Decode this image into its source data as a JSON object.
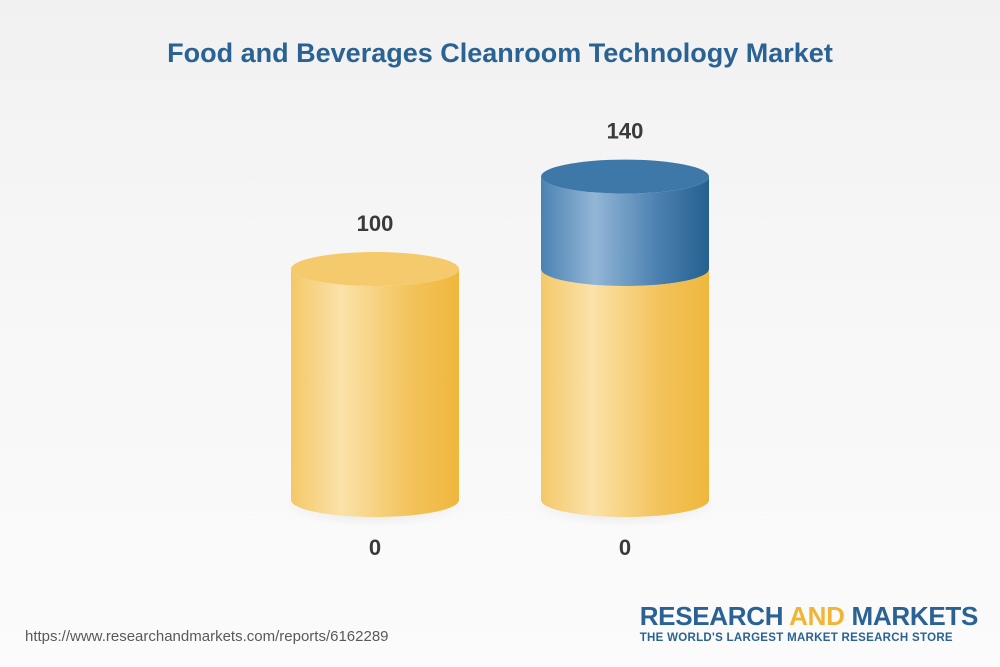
{
  "page": {
    "source_url": "https://www.researchandmarkets.com/reports/6162289"
  },
  "logo": {
    "word1": "RESEARCH ",
    "word2": "AND",
    "word3": " MARKETS",
    "tagline": "THE WORLD'S LARGEST MARKET RESEARCH STORE"
  },
  "chart_data": {
    "type": "bar",
    "style": "3d-cylinder",
    "title": "Food and Beverages Cleanroom Technology Market",
    "categories": [
      "",
      ""
    ],
    "values": [
      100,
      140
    ],
    "top_labels": [
      "100",
      "140"
    ],
    "bottom_labels": [
      "0",
      "0"
    ],
    "ylim": [
      0,
      140
    ],
    "grid": false,
    "legend": "none",
    "colors": {
      "base": "#f0bd4a",
      "base_light": "#fbe1a8",
      "growth": "#3572a4",
      "growth_light": "#8fb4d4"
    },
    "segments": [
      [
        {
          "value": 100,
          "color": "base"
        }
      ],
      [
        {
          "value": 100,
          "color": "base"
        },
        {
          "value": 40,
          "color": "growth"
        }
      ]
    ]
  }
}
